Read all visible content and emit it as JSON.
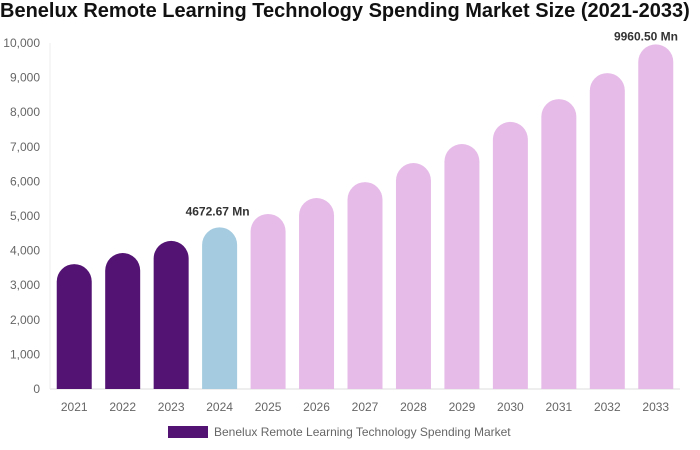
{
  "chart_data": {
    "type": "bar",
    "title": "Benelux Remote Learning Technology Spending Market Size (2021-2033)",
    "categories": [
      "2021",
      "2022",
      "2023",
      "2024",
      "2025",
      "2026",
      "2027",
      "2028",
      "2029",
      "2030",
      "2031",
      "2032",
      "2033"
    ],
    "series": [
      {
        "name": "Benelux Remote Learning Technology Spending Market",
        "values": [
          3610,
          3930,
          4280,
          4672.67,
          5060,
          5520,
          5980,
          6530,
          7080,
          7720,
          8380,
          9130,
          9960.5
        ]
      }
    ],
    "data_labels": {
      "2024": "4672.67 Mn",
      "2033": "9960.50 Mn"
    },
    "bar_colors": {
      "historical": "#531373",
      "current": "#a4cbdf",
      "forecast": "#e6bbe8"
    },
    "bar_color_by_category": [
      "historical",
      "historical",
      "historical",
      "current",
      "forecast",
      "forecast",
      "forecast",
      "forecast",
      "forecast",
      "forecast",
      "forecast",
      "forecast",
      "forecast"
    ],
    "ylim": [
      0,
      10000
    ],
    "yticks": [
      "0",
      "1,000",
      "2,000",
      "3,000",
      "4,000",
      "5,000",
      "6,000",
      "7,000",
      "8,000",
      "9,000",
      "10,000"
    ],
    "xlabel": "",
    "ylabel": "",
    "grid": false,
    "legend_position": "bottom"
  }
}
